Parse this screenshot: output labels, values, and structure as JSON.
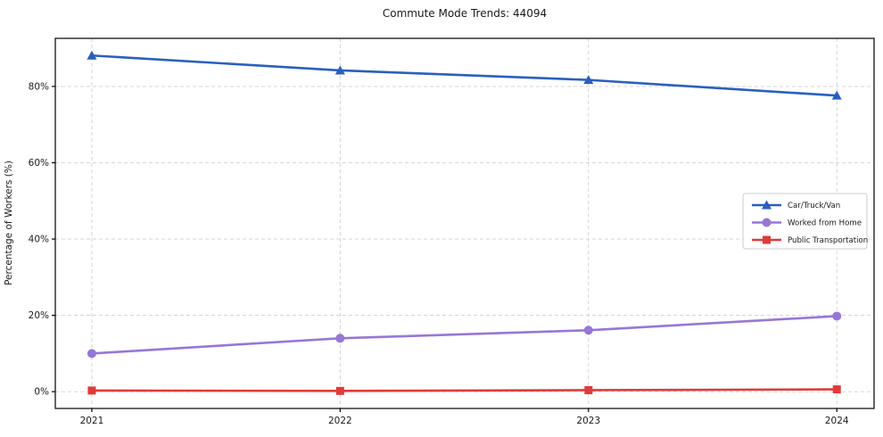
{
  "window": {
    "background": "#ffffff"
  },
  "chart_data": {
    "type": "line",
    "title": "Commute Mode Trends: 44094",
    "xlabel": "",
    "ylabel": "Percentage of Workers (%)",
    "x": [
      2021,
      2022,
      2023,
      2024
    ],
    "x_tick_labels": [
      "2021",
      "2022",
      "2023",
      "2024"
    ],
    "y_ticks": [
      0,
      20,
      40,
      60,
      80
    ],
    "y_tick_labels": [
      "0%",
      "20%",
      "40%",
      "60%",
      "80%"
    ],
    "ylim": [
      -4.4,
      92.6
    ],
    "grid": true,
    "grid_style": "dashed",
    "grid_color": "#d0d0d0",
    "axis_color": "#000000",
    "legend_position": "center right",
    "legend_border_color": "#cccccc",
    "series": [
      {
        "name": "Car/Truck/Van",
        "color": "#2a5fbf",
        "marker": "triangle",
        "values": [
          88.1,
          84.2,
          81.7,
          77.6
        ]
      },
      {
        "name": "Worked from Home",
        "color": "#9777d6",
        "marker": "circle",
        "values": [
          10.0,
          14.0,
          16.1,
          19.8
        ]
      },
      {
        "name": "Public Transportation",
        "color": "#e03a3a",
        "marker": "square",
        "values": [
          0.3,
          0.2,
          0.4,
          0.6
        ]
      }
    ]
  }
}
